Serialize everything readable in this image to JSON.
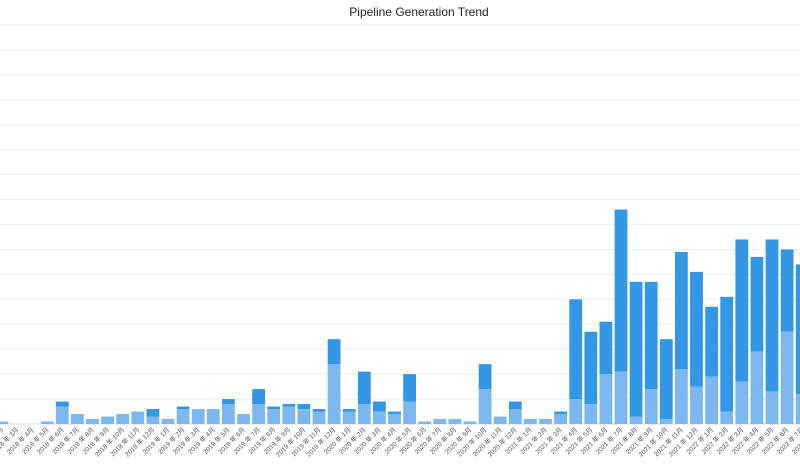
{
  "chart_data": {
    "type": "bar",
    "stacked": true,
    "title": "Pipeline Generation Trend",
    "categories": [
      "2018 年 2月",
      "2018 年 3月",
      "2018 年 4月",
      "2018 年 5月",
      "2018 年 6月",
      "2018 年 7月",
      "2018 年 8月",
      "2018 年 9月",
      "2018 年 10月",
      "2018 年 11月",
      "2018 年 12月",
      "2019 年 1月",
      "2019 年 2月",
      "2019 年 3月",
      "2019 年 4月",
      "2019 年 5月",
      "2019 年 6月",
      "2019 年 7月",
      "2019 年 8月",
      "2019 年 9月",
      "2019 年 10月",
      "2019 年 11月",
      "2019 年 12月",
      "2020 年 1月",
      "2020 年 2月",
      "2020 年 3月",
      "2020 年 4月",
      "2020 年 5月",
      "2020 年 6月",
      "2020 年 7月",
      "2020 年 8月",
      "2020 年 9月",
      "2020 年 10月",
      "2020 年 11月",
      "2020 年 12月",
      "2021 年 1月",
      "2021 年 2月",
      "2021 年 3月",
      "2021 年 4月",
      "2021 年 5月",
      "2021 年 6月",
      "2021 年 7月",
      "2021 年 8月",
      "2021 年 9月",
      "2021 年 10月",
      "2021 年 11月",
      "2021 年 12月",
      "2022 年 1月",
      "2022 年 2月",
      "2022 年 3月",
      "2022 年 4月",
      "2022 年 5月",
      "2022 年 6月",
      "2022 年 7月",
      "2022 年 8月"
    ],
    "series": [
      {
        "color": "#7cb8ef",
        "values": [
          1,
          0,
          0,
          1,
          7,
          4,
          2,
          3,
          4,
          5,
          3,
          2,
          6,
          6,
          6,
          8,
          4,
          8,
          6,
          7,
          6,
          5,
          24,
          5,
          8,
          5,
          4,
          9,
          1,
          2,
          2,
          1,
          14,
          3,
          6,
          2,
          2,
          4,
          10,
          8,
          20,
          21,
          3,
          14,
          2,
          22,
          15,
          19,
          5,
          17,
          29,
          13,
          37,
          12,
          5
        ]
      },
      {
        "color": "#3497e6",
        "values": [
          0,
          0,
          0,
          0,
          2,
          0,
          0,
          0,
          0,
          0,
          3,
          0,
          1,
          0,
          0,
          2,
          0,
          6,
          1,
          1,
          2,
          1,
          10,
          1,
          13,
          4,
          1,
          11,
          0,
          0,
          0,
          0,
          10,
          0,
          3,
          0,
          0,
          1,
          40,
          29,
          21,
          65,
          54,
          43,
          32,
          47,
          46,
          28,
          46,
          57,
          38,
          61,
          33,
          52,
          57
        ]
      }
    ],
    "ylim": [
      0,
      160
    ]
  }
}
